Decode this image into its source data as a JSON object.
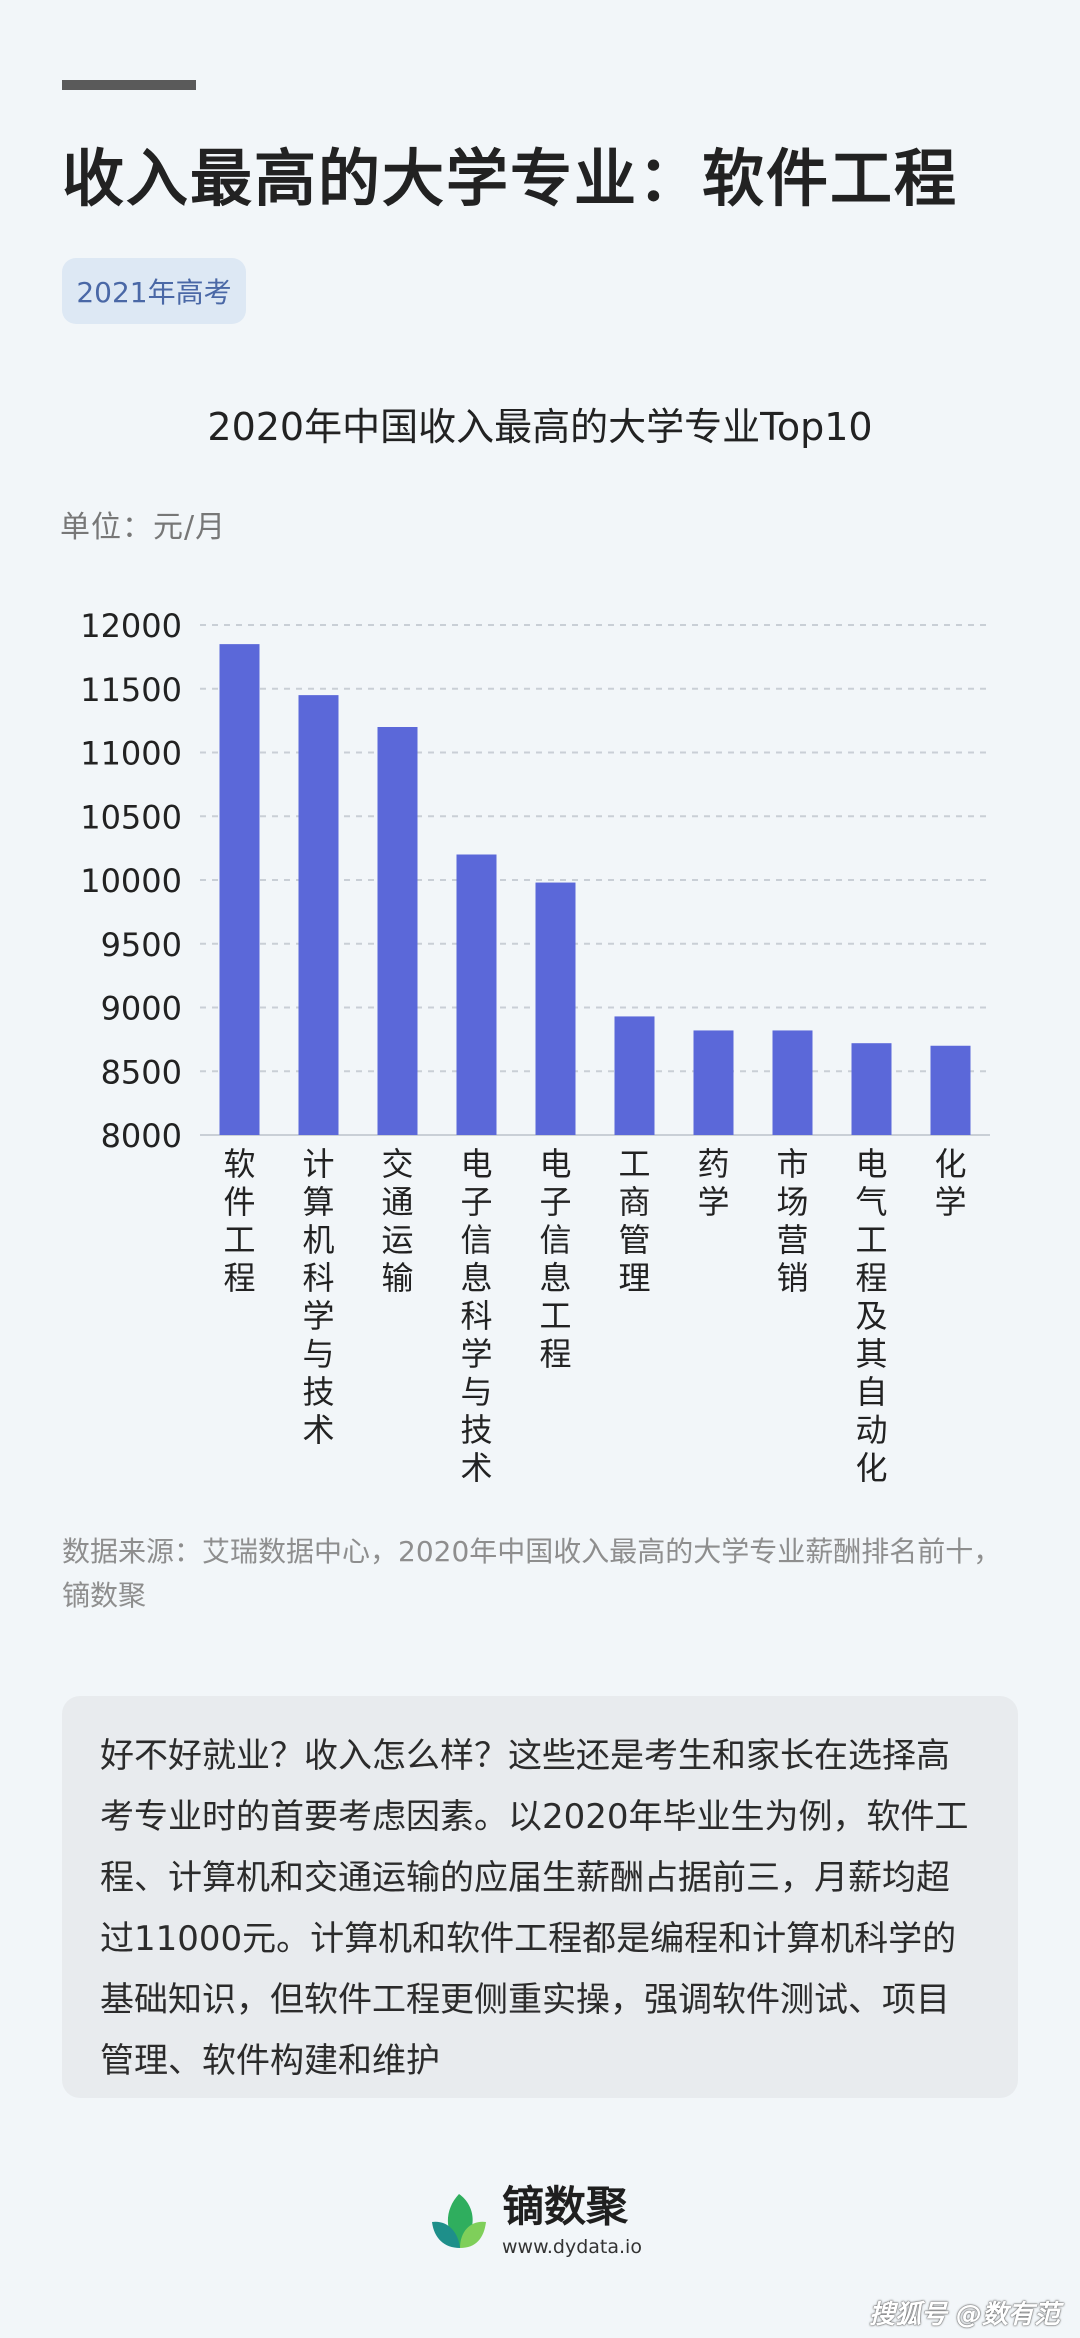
{
  "header": {
    "title": "收入最高的大学专业：软件工程",
    "tag": "2021年高考"
  },
  "chart_data": {
    "type": "bar",
    "title": "2020年中国收入最高的大学专业Top10",
    "unit_label": "单位：元/月",
    "categories": [
      "软件工程",
      "计算机科学与技术",
      "交通运输",
      "电子信息科学与技术",
      "电子信息工程",
      "工商管理",
      "药学",
      "市场营销",
      "电气工程及其自动化",
      "化学"
    ],
    "values": [
      11850,
      11450,
      11200,
      10200,
      9980,
      8930,
      8820,
      8820,
      8720,
      8700
    ],
    "ylim": [
      8000,
      12000
    ],
    "yticks": [
      8000,
      8500,
      9000,
      9500,
      10000,
      10500,
      11000,
      11500,
      12000
    ],
    "grid": true,
    "bar_color": "#5b68d9"
  },
  "source_text": "数据来源：艾瑞数据中心，2020年中国收入最高的大学专业薪酬排名前十，镝数聚",
  "note_text": "好不好就业？收入怎么样？这些还是考生和家长在选择高考专业时的首要考虑因素。以2020年毕业生为例，软件工程、计算机和交通运输的应届生薪酬占据前三，月薪均超过11000元。计算机和软件工程都是编程和计算机科学的基础知识，但软件工程更侧重实操，强调软件测试、项目管理、软件构建和维护",
  "logo": {
    "brand": "镝数聚",
    "url": "www.dydata.io",
    "icon": "leaf-icon"
  },
  "watermark": "搜狐号 @数有范"
}
